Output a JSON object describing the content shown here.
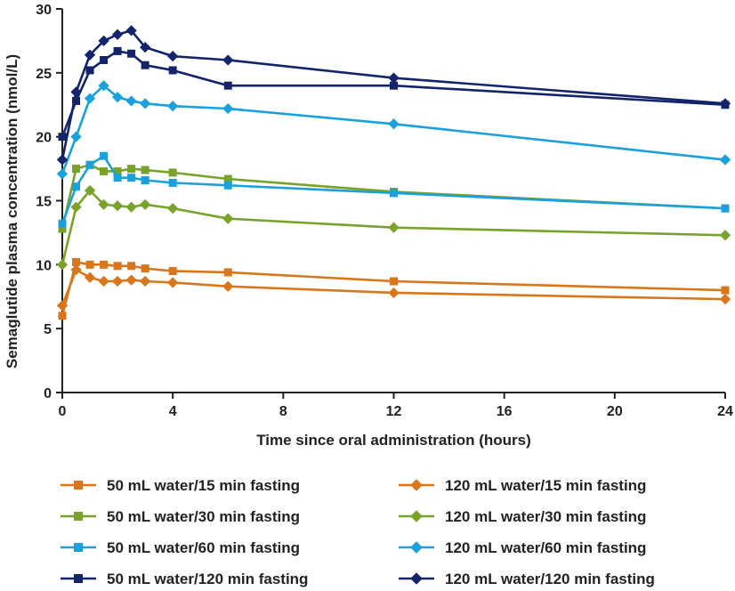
{
  "chart_data": {
    "type": "line",
    "xlabel": "Time since oral administration (hours)",
    "ylabel": "Semaglutide plasma concentration (nmol/L)",
    "xlim": [
      0,
      24
    ],
    "ylim": [
      0,
      30
    ],
    "xticks": [
      0,
      4,
      8,
      12,
      16,
      20,
      24
    ],
    "yticks": [
      0,
      5,
      10,
      15,
      20,
      25,
      30
    ],
    "grid": false,
    "legend_position": "bottom",
    "x": [
      0,
      0.5,
      1,
      1.5,
      2,
      2.5,
      3,
      4,
      6,
      12,
      24
    ],
    "series": [
      {
        "name": "50 mL water/15 min fasting",
        "color": "#D9761C",
        "marker": "square",
        "values": [
          6.0,
          10.2,
          10.0,
          10.0,
          9.9,
          9.9,
          9.7,
          9.5,
          9.4,
          8.7,
          8.0
        ]
      },
      {
        "name": "120 mL water/15 min fasting",
        "color": "#D9761C",
        "marker": "diamond",
        "values": [
          6.8,
          9.6,
          9.0,
          8.7,
          8.7,
          8.8,
          8.7,
          8.6,
          8.3,
          7.8,
          7.3
        ]
      },
      {
        "name": "50 mL water/30 min fasting",
        "color": "#79A22B",
        "marker": "square",
        "values": [
          12.8,
          17.5,
          17.8,
          17.3,
          17.3,
          17.5,
          17.4,
          17.2,
          16.7,
          15.7,
          14.4
        ]
      },
      {
        "name": "120 mL water/30 min fasting",
        "color": "#79A22B",
        "marker": "diamond",
        "values": [
          10.0,
          14.5,
          15.8,
          14.7,
          14.6,
          14.5,
          14.7,
          14.4,
          13.6,
          12.9,
          12.3
        ]
      },
      {
        "name": "50 mL water/60 min fasting",
        "color": "#1AA0DC",
        "marker": "square",
        "values": [
          13.2,
          16.1,
          17.8,
          18.5,
          16.8,
          16.8,
          16.6,
          16.4,
          16.2,
          15.6,
          14.4
        ]
      },
      {
        "name": "120 mL water/60 min fasting",
        "color": "#1AA0DC",
        "marker": "diamond",
        "values": [
          17.1,
          20.0,
          23.0,
          24.0,
          23.1,
          22.8,
          22.6,
          22.4,
          22.2,
          21.0,
          18.2
        ]
      },
      {
        "name": "50 mL water/120 min fasting",
        "color": "#13246B",
        "marker": "square",
        "values": [
          20.0,
          22.8,
          25.2,
          26.0,
          26.7,
          26.5,
          25.6,
          25.2,
          24.0,
          24.0,
          22.5
        ]
      },
      {
        "name": "120 mL water/120 min fasting",
        "color": "#13246B",
        "marker": "diamond",
        "values": [
          18.2,
          23.5,
          26.4,
          27.5,
          28.0,
          28.3,
          27.0,
          26.3,
          26.0,
          24.6,
          22.6
        ]
      }
    ]
  }
}
